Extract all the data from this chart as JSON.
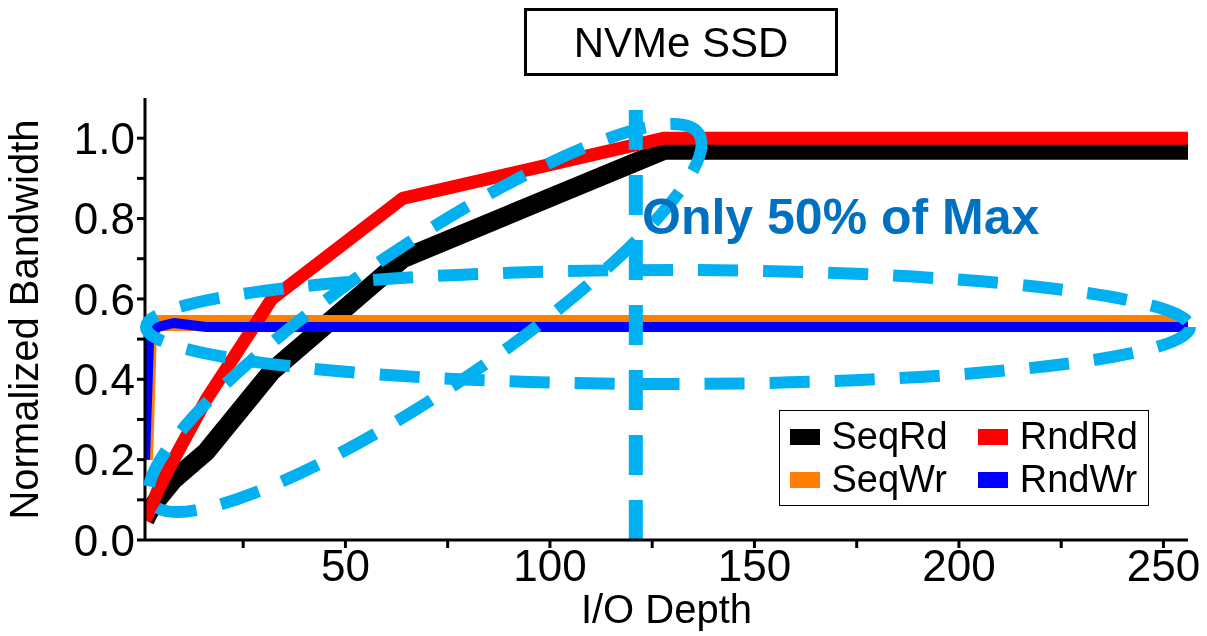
{
  "chart_data": {
    "type": "line",
    "title": "NVMe SSD",
    "xlabel": "I/O Depth",
    "ylabel": "Normalized Bandwidth",
    "x": [
      1,
      2,
      4,
      8,
      16,
      32,
      64,
      128,
      256
    ],
    "series": [
      {
        "name": "SeqRd",
        "color": "#000000",
        "values": [
          0.05,
          0.07,
          0.1,
          0.15,
          0.22,
          0.42,
          0.7,
          0.97,
          0.97
        ]
      },
      {
        "name": "SeqWr",
        "color": "#ff8000",
        "values": [
          0.2,
          0.53,
          0.54,
          0.54,
          0.54,
          0.54,
          0.54,
          0.54,
          0.54
        ]
      },
      {
        "name": "RndRd",
        "color": "#ff0000",
        "values": [
          0.05,
          0.07,
          0.12,
          0.2,
          0.35,
          0.6,
          0.85,
          1.0,
          1.0
        ]
      },
      {
        "name": "RndWr",
        "color": "#0000ff",
        "values": [
          0.2,
          0.5,
          0.53,
          0.54,
          0.53,
          0.53,
          0.53,
          0.53,
          0.53
        ]
      }
    ],
    "xlim": [
      1,
      256
    ],
    "xticks": [
      {
        "value": 25,
        "label": null
      },
      50,
      {
        "value": 75,
        "label": null
      },
      100,
      {
        "value": 125,
        "label": null
      },
      150,
      {
        "value": 175,
        "label": null
      },
      200,
      {
        "value": 225,
        "label": null
      },
      250
    ],
    "ylim": [
      0,
      1.1
    ],
    "yticks": [
      "0.0",
      {
        "value": 0.1,
        "label": null
      },
      0.2,
      {
        "value": 0.3,
        "label": null
      },
      0.4,
      {
        "value": 0.5,
        "label": null
      },
      0.6,
      {
        "value": 0.7,
        "label": null
      },
      0.8,
      {
        "value": 0.9,
        "label": null
      },
      {
        "value": 1.0,
        "label": "1.0"
      }
    ],
    "ref_lines": [
      {
        "axis": "x",
        "value": 121,
        "color": "#00b0f0",
        "line_style": "dashed"
      }
    ],
    "annotations": [
      "Only 50% of Max"
    ],
    "legend": "bottom right",
    "grid": false,
    "marker": "none",
    "line_style": "solid"
  }
}
